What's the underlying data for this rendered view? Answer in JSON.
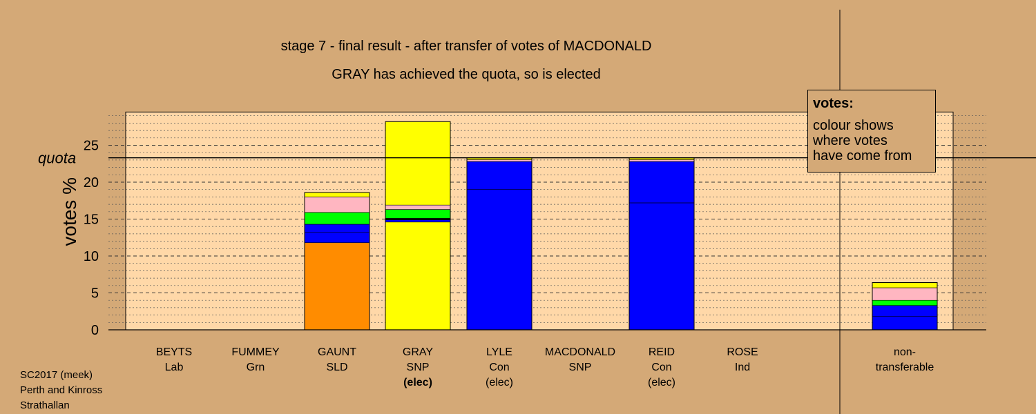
{
  "title": "stage 7 - final result - after transfer of votes of MACDONALD",
  "subtitle": "GRAY has achieved the quota, so is elected",
  "footer": [
    "SC2017 (meek)",
    "Perth and Kinross",
    "Strathallan"
  ],
  "legend": {
    "heading": "votes:",
    "lines": [
      "colour shows",
      "where votes",
      "have come from"
    ]
  },
  "chart_data": {
    "type": "bar",
    "stacked": true,
    "ylabel": "votes %",
    "ylim": [
      0,
      29.5
    ],
    "yticks": [
      0,
      5,
      10,
      15,
      20,
      25
    ],
    "quota": {
      "label": "quota",
      "value": 23.3
    },
    "grid": "dashed horizontal lines",
    "legend_placement": "top-right",
    "colors": {
      "SNP": "#ffff00",
      "Con": "#0000ff",
      "SLD": "#ff8c00",
      "Lab": "#ffb6c1",
      "Grn": "#00ff00",
      "Ind": "#000000",
      "plot_bg": "#ffd8a8",
      "page_bg": "#d4a977"
    },
    "candidates": [
      {
        "name": "BEYTS",
        "party": "Lab",
        "status": "",
        "segments": []
      },
      {
        "name": "FUMMEY",
        "party": "Grn",
        "status": "",
        "segments": []
      },
      {
        "name": "GAUNT",
        "party": "SLD",
        "status": "",
        "segments": [
          {
            "from": "SLD",
            "value": 11.8
          },
          {
            "from": "Con",
            "value": 1.4
          },
          {
            "from": "Con",
            "value": 1.1
          },
          {
            "from": "Grn",
            "value": 1.6
          },
          {
            "from": "Lab",
            "value": 2.1
          },
          {
            "from": "SNP",
            "value": 0.6
          }
        ]
      },
      {
        "name": "GRAY",
        "party": "SNP",
        "status": "(elec)",
        "status_bold": true,
        "segments": [
          {
            "from": "SNP",
            "value": 14.6
          },
          {
            "from": "Con",
            "value": 0.3
          },
          {
            "from": "Ind",
            "value": 0.2
          },
          {
            "from": "Grn",
            "value": 1.2
          },
          {
            "from": "Lab",
            "value": 0.6
          },
          {
            "from": "SNP",
            "value": 11.3
          }
        ]
      },
      {
        "name": "LYLE",
        "party": "Con",
        "status": "(elec)",
        "segments": [
          {
            "from": "Con",
            "value": 19.0
          },
          {
            "from": "Con",
            "value": 3.8
          },
          {
            "from": "Lab",
            "value": 0.25
          },
          {
            "from": "SNP",
            "value": 0.25
          }
        ]
      },
      {
        "name": "MACDONALD",
        "party": "SNP",
        "status": "",
        "segments": []
      },
      {
        "name": "REID",
        "party": "Con",
        "status": "(elec)",
        "segments": [
          {
            "from": "Con",
            "value": 17.2
          },
          {
            "from": "Con",
            "value": 5.6
          },
          {
            "from": "Lab",
            "value": 0.25
          },
          {
            "from": "SNP",
            "value": 0.25
          }
        ]
      },
      {
        "name": "ROSE",
        "party": "Ind",
        "status": "",
        "segments": []
      }
    ],
    "nontransferable": {
      "name": "non-",
      "name2": "transferable",
      "segments": [
        {
          "from": "Con",
          "value": 1.8
        },
        {
          "from": "Con",
          "value": 1.5
        },
        {
          "from": "Grn",
          "value": 0.7
        },
        {
          "from": "Lab",
          "value": 1.7
        },
        {
          "from": "SNP",
          "value": 0.7
        }
      ]
    }
  }
}
